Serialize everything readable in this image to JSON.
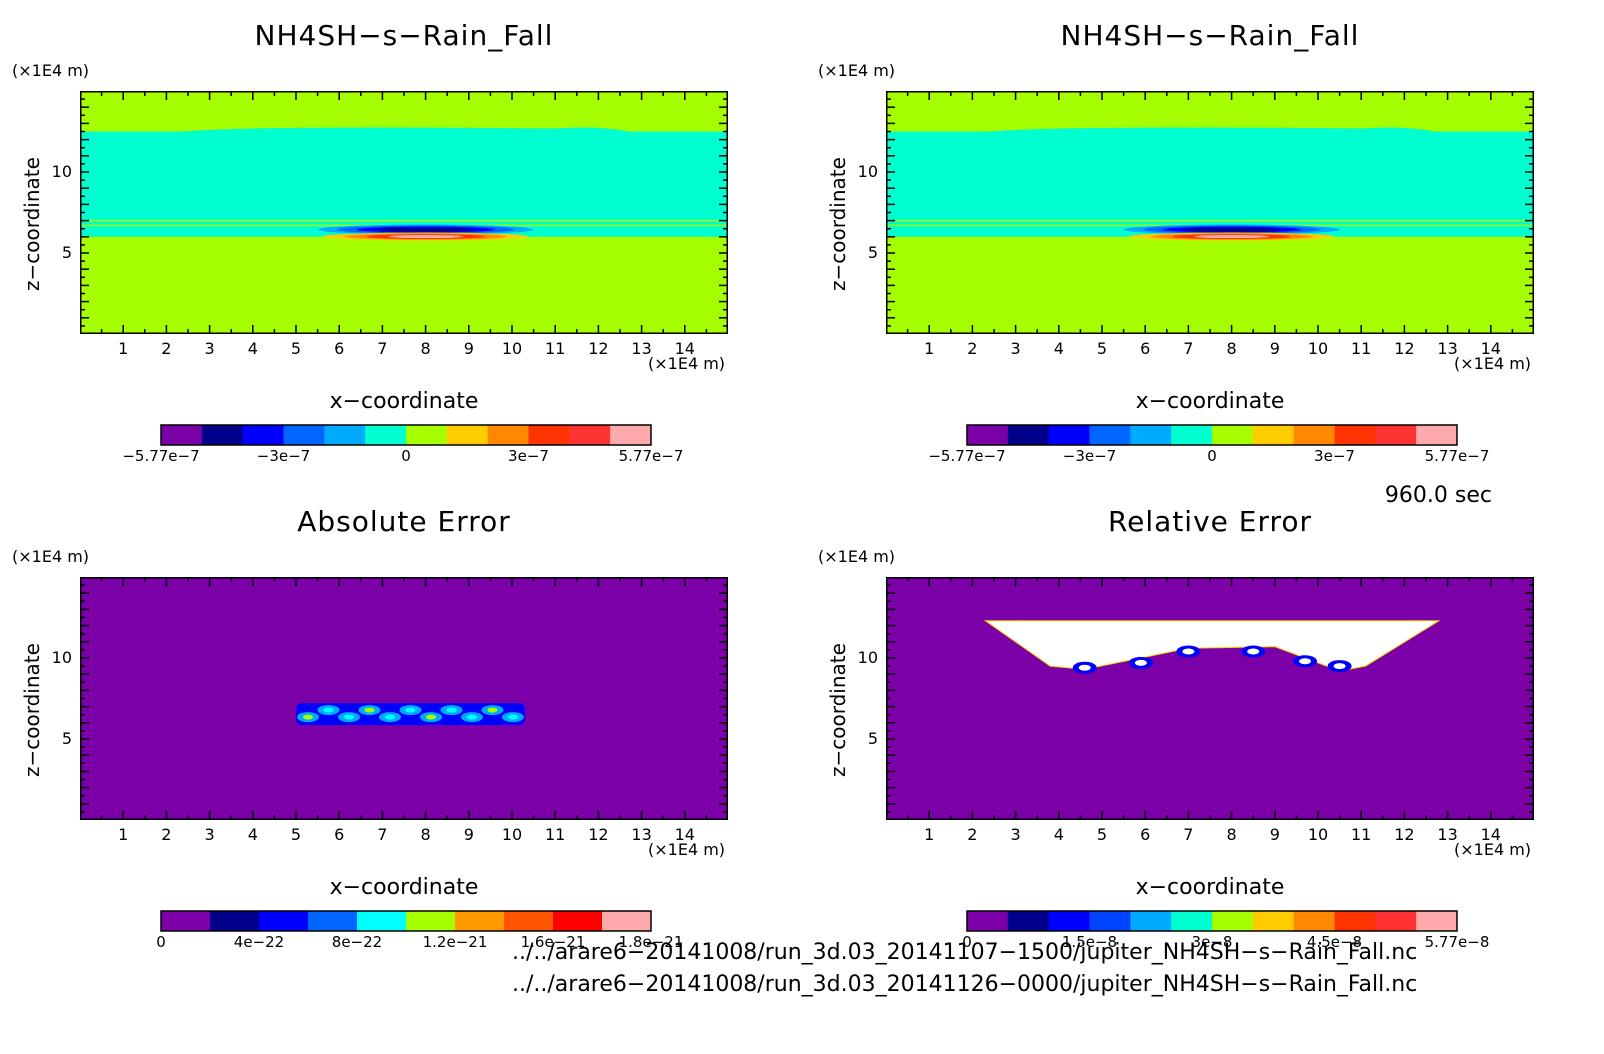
{
  "chart_data": [
    {
      "type": "heatmap",
      "title": "NH4SH−s−Rain_Fall",
      "xlabel": "x−coordinate",
      "ylabel": "z−coordinate",
      "x_unit": "(×1E4 m)",
      "y_unit": "(×1E4 m)",
      "xlim": [
        0,
        15
      ],
      "ylim": [
        0,
        15
      ],
      "x_ticks": [
        "1",
        "2",
        "3",
        "4",
        "5",
        "6",
        "7",
        "8",
        "9",
        "10",
        "11",
        "12",
        "13",
        "14"
      ],
      "y_ticks": [
        "5",
        "10"
      ],
      "colorbar": {
        "labels": [
          "−5.77e−7",
          "−3e−7",
          "0",
          "3e−7",
          "5.77e−7"
        ],
        "colors": [
          "#7b00a8",
          "#00008a",
          "#0000ff",
          "#0066ff",
          "#00aaff",
          "#00ffd0",
          "#a6ff00",
          "#ffcc00",
          "#ff8800",
          "#ff3300",
          "#ff3333",
          "#ffaaaa"
        ]
      },
      "field": {
        "background": "#a6ff00",
        "band": "#00ffd0",
        "band_z": [
          6.0,
          12.5
        ],
        "anomaly_x": [
          5.5,
          10.5
        ],
        "anomaly_z": 6.2
      }
    },
    {
      "type": "heatmap",
      "title": "NH4SH−s−Rain_Fall",
      "xlabel": "x−coordinate",
      "ylabel": "z−coordinate",
      "x_unit": "(×1E4 m)",
      "y_unit": "(×1E4 m)",
      "xlim": [
        0,
        15
      ],
      "ylim": [
        0,
        15
      ],
      "x_ticks": [
        "1",
        "2",
        "3",
        "4",
        "5",
        "6",
        "7",
        "8",
        "9",
        "10",
        "11",
        "12",
        "13",
        "14"
      ],
      "y_ticks": [
        "5",
        "10"
      ],
      "colorbar": {
        "labels": [
          "−5.77e−7",
          "−3e−7",
          "0",
          "3e−7",
          "5.77e−7"
        ],
        "colors": [
          "#7b00a8",
          "#00008a",
          "#0000ff",
          "#0066ff",
          "#00aaff",
          "#00ffd0",
          "#a6ff00",
          "#ffcc00",
          "#ff8800",
          "#ff3300",
          "#ff3333",
          "#ffaaaa"
        ]
      },
      "field": {
        "background": "#a6ff00",
        "band": "#00ffd0",
        "band_z": [
          6.0,
          12.5
        ],
        "anomaly_x": [
          5.5,
          10.5
        ],
        "anomaly_z": 6.2
      }
    },
    {
      "type": "heatmap",
      "title": "Absolute Error",
      "xlabel": "x−coordinate",
      "ylabel": "z−coordinate",
      "x_unit": "(×1E4 m)",
      "y_unit": "(×1E4 m)",
      "xlim": [
        0,
        15
      ],
      "ylim": [
        0,
        15
      ],
      "x_ticks": [
        "1",
        "2",
        "3",
        "4",
        "5",
        "6",
        "7",
        "8",
        "9",
        "10",
        "11",
        "12",
        "13",
        "14"
      ],
      "y_ticks": [
        "5",
        "10"
      ],
      "colorbar": {
        "labels": [
          "0",
          "4e−22",
          "8e−22",
          "1.2e−21",
          "1.6e−21",
          "1.8e−21"
        ],
        "colors": [
          "#7b00a8",
          "#00008a",
          "#0000ff",
          "#0066ff",
          "#00ffff",
          "#a6ff00",
          "#ff9900",
          "#ff5500",
          "#ff0000",
          "#ffaaaa"
        ]
      },
      "field": {
        "background": "#7b00a8",
        "blob_x": [
          5.0,
          10.3
        ],
        "blob_z": 6.6
      }
    },
    {
      "type": "heatmap",
      "title": "Relative Error",
      "xlabel": "x−coordinate",
      "ylabel": "z−coordinate",
      "x_unit": "(×1E4 m)",
      "y_unit": "(×1E4 m)",
      "xlim": [
        0,
        15
      ],
      "ylim": [
        0,
        15
      ],
      "x_ticks": [
        "1",
        "2",
        "3",
        "4",
        "5",
        "6",
        "7",
        "8",
        "9",
        "10",
        "11",
        "12",
        "13",
        "14"
      ],
      "y_ticks": [
        "5",
        "10"
      ],
      "colorbar": {
        "labels": [
          "0",
          "1.5e−8",
          "3e−8",
          "4.5e−8",
          "5.77e−8"
        ],
        "colors": [
          "#7b00a8",
          "#00008a",
          "#0000ff",
          "#0044ff",
          "#00aaff",
          "#00ffd0",
          "#a6ff00",
          "#ffcc00",
          "#ff8800",
          "#ff3300",
          "#ff3333",
          "#ffaaaa"
        ]
      },
      "field": {
        "background": "#7b00a8",
        "white_x": [
          2.3,
          12.8
        ],
        "white_z": [
          9.5,
          12.3
        ]
      }
    }
  ],
  "time_label": "960.0 sec",
  "paths": [
    "../../arare6−20141008/run_3d.03_20141107−1500/jupiter_NH4SH−s−Rain_Fall.nc",
    "../../arare6−20141008/run_3d.03_20141126−0000/jupiter_NH4SH−s−Rain_Fall.nc"
  ]
}
